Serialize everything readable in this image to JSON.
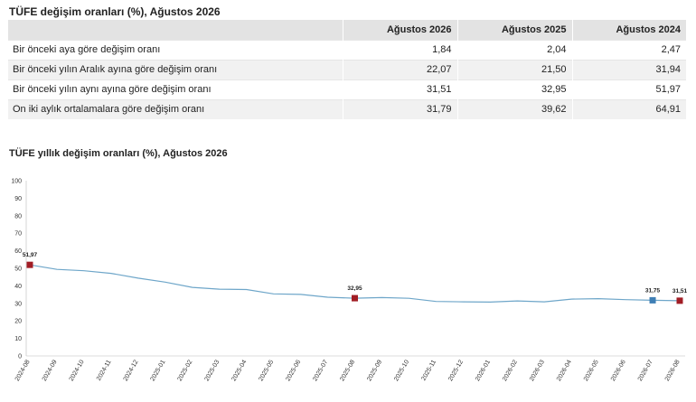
{
  "table": {
    "title": "TÜFE değişim oranları (%), Ağustos 2026",
    "headers": [
      "",
      "Ağustos 2026",
      "Ağustos 2025",
      "Ağustos 2024"
    ],
    "rows": [
      [
        "Bir önceki aya göre değişim oranı",
        "1,84",
        "2,04",
        "2,47"
      ],
      [
        "Bir önceki yılın Aralık ayına göre değişim oranı",
        "22,07",
        "21,50",
        "31,94"
      ],
      [
        "Bir önceki yılın aynı ayına göre değişim oranı",
        "31,51",
        "32,95",
        "51,97"
      ],
      [
        "On iki aylık ortalamalara göre değişim oranı",
        "31,79",
        "39,62",
        "64,91"
      ]
    ]
  },
  "chart_data": {
    "type": "line",
    "title": "TÜFE yıllık değişim oranları (%), Ağustos 2026",
    "ylim": [
      0,
      100
    ],
    "yticks": [
      0,
      10,
      20,
      30,
      40,
      50,
      60,
      70,
      80,
      90,
      100
    ],
    "x": [
      "2024-08",
      "2024-09",
      "2024-10",
      "2024-11",
      "2024-12",
      "2025-01",
      "2025-02",
      "2025-03",
      "2025-04",
      "2025-05",
      "2025-06",
      "2025-07",
      "2025-08",
      "2025-09",
      "2025-10",
      "2025-11",
      "2025-12",
      "2026-01",
      "2026-02",
      "2026-03",
      "2026-04",
      "2026-05",
      "2026-06",
      "2026-07",
      "2026-08"
    ],
    "values": [
      51.97,
      49.4,
      48.6,
      47.1,
      44.4,
      42.1,
      39.1,
      38.1,
      37.9,
      35.4,
      35.1,
      33.5,
      32.95,
      33.3,
      32.9,
      31.1,
      30.9,
      30.7,
      31.4,
      30.9,
      32.4,
      32.7,
      32.1,
      31.75,
      31.51
    ],
    "markers": [
      {
        "index": 0,
        "label": "51,97",
        "color": "#a11d25"
      },
      {
        "index": 12,
        "label": "32,95",
        "color": "#a11d25"
      },
      {
        "index": 23,
        "label": "31,75",
        "color": "#3f7fb5"
      },
      {
        "index": 24,
        "label": "31,51",
        "color": "#a11d25"
      }
    ],
    "line_color": "#6ea6c9",
    "grid": false
  }
}
